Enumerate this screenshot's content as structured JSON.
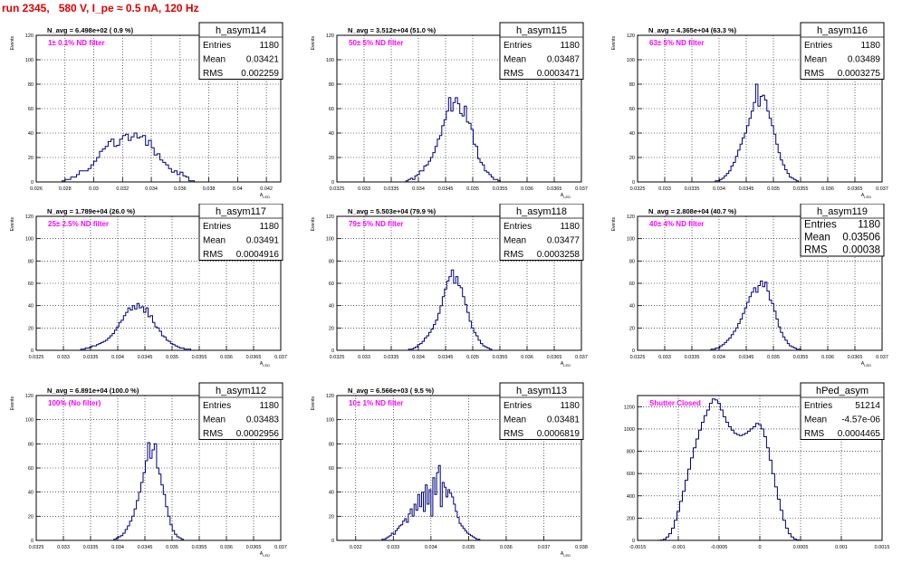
{
  "page": {
    "title": "run 2345,   580 V, I_pe ≈ 0.5 nA, 120 Hz"
  },
  "chart_data": [
    {
      "type": "histogram",
      "name": "h_asym114",
      "ylabel": "Events",
      "xlabel": "A_LED",
      "stat_labels": {
        "entries": "Entries",
        "mean": "Mean",
        "rms": "RMS"
      },
      "entries": "1180",
      "mean": "0.03421",
      "rms": "0.002259",
      "navg": "N_avg = 6.498e+02 ( 0.9 %)",
      "filter": "1± 0.1% ND filter",
      "xlim": [
        0.026,
        0.043
      ],
      "xticks": [
        "0.026",
        "0.028",
        "0.03",
        "0.032",
        "0.034",
        "0.036",
        "0.038",
        "0.04",
        "0.042"
      ],
      "ylim": [
        0,
        120
      ],
      "yticks": [
        "0",
        "20",
        "40",
        "60",
        "80",
        "100",
        "120"
      ],
      "bins": {
        "lo": 0.0278,
        "width": 0.0002,
        "values": [
          1,
          2,
          2,
          4,
          4,
          6,
          9,
          9,
          9,
          11,
          14,
          17,
          20,
          25,
          27,
          29,
          33,
          35,
          29,
          30,
          35,
          38,
          39,
          34,
          37,
          40,
          36,
          37,
          38,
          30,
          34,
          28,
          22,
          23,
          18,
          16,
          14,
          11,
          8,
          9,
          6,
          8,
          5,
          4,
          1,
          1
        ]
      },
      "grid": true
    },
    {
      "type": "histogram",
      "name": "h_asym115",
      "ylabel": "Events",
      "xlabel": "A_LED",
      "stat_labels": {
        "entries": "Entries",
        "mean": "Mean",
        "rms": "RMS"
      },
      "entries": "1180",
      "mean": "0.03487",
      "rms": "0.0003471",
      "navg": "N_avg = 3.512e+04 (51.0 %)",
      "filter": "50± 5% ND filter",
      "xlim": [
        0.0325,
        0.037
      ],
      "xticks": [
        "0.0325",
        "0.033",
        "0.0335",
        "0.034",
        "0.0345",
        "0.035",
        "0.0355",
        "0.036",
        "0.0365",
        "0.037"
      ],
      "ylim": [
        0,
        120
      ],
      "yticks": [
        "0",
        "20",
        "40",
        "60",
        "80",
        "100",
        "120"
      ],
      "bins": {
        "lo": 0.03377,
        "width": 4.13e-05,
        "values": [
          1,
          2,
          3,
          2,
          5,
          6,
          9,
          9,
          13,
          14,
          17,
          20,
          24,
          29,
          35,
          38,
          46,
          51,
          58,
          69,
          58,
          65,
          69,
          64,
          56,
          54,
          62,
          49,
          48,
          43,
          31,
          29,
          19,
          16,
          14,
          9,
          8,
          6,
          4,
          2,
          2,
          1
        ]
      },
      "grid": true
    },
    {
      "type": "histogram",
      "name": "h_asym116",
      "ylabel": "Events",
      "xlabel": "A_LED",
      "stat_labels": {
        "entries": "Entries",
        "mean": "Mean",
        "rms": "RMS"
      },
      "entries": "1180",
      "mean": "0.03489",
      "rms": "0.0003275",
      "navg": "N_avg = 4.365e+04 (63.3 %)",
      "filter": "63± 5% ND filter",
      "xlim": [
        0.0325,
        0.037
      ],
      "xticks": [
        "0.0325",
        "0.033",
        "0.0335",
        "0.034",
        "0.0345",
        "0.035",
        "0.0355",
        "0.036",
        "0.0365",
        "0.037"
      ],
      "ylim": [
        0,
        120
      ],
      "yticks": [
        "0",
        "20",
        "40",
        "60",
        "80",
        "100",
        "120"
      ],
      "bins": {
        "lo": 0.03393,
        "width": 4.13e-05,
        "values": [
          1,
          1,
          2,
          3,
          5,
          7,
          9,
          13,
          16,
          21,
          26,
          31,
          36,
          40,
          46,
          52,
          58,
          65,
          80,
          62,
          70,
          71,
          67,
          58,
          52,
          46,
          39,
          31,
          24,
          18,
          14,
          10,
          7,
          4,
          3,
          2,
          1
        ]
      },
      "grid": true
    },
    {
      "type": "histogram",
      "name": "h_asym117",
      "ylabel": "Events",
      "xlabel": "A_LED",
      "stat_labels": {
        "entries": "Entries",
        "mean": "Mean",
        "rms": "RMS"
      },
      "entries": "1180",
      "mean": "0.03491",
      "rms": "0.0004916",
      "navg": "N_avg = 1.789e+04 (26.0 %)",
      "filter": "25± 2.5% ND filter",
      "xlim": [
        0.0325,
        0.037
      ],
      "xticks": [
        "0.0325",
        "0.033",
        "0.0335",
        "0.034",
        "0.0345",
        "0.035",
        "0.0355",
        "0.036",
        "0.0365",
        "0.037"
      ],
      "ylim": [
        0,
        120
      ],
      "yticks": [
        "0",
        "20",
        "40",
        "60",
        "80",
        "100",
        "120"
      ],
      "bins": {
        "lo": 0.03332,
        "width": 4.13e-05,
        "values": [
          1,
          1,
          2,
          2,
          3,
          4,
          4,
          5,
          6,
          7,
          8,
          9,
          11,
          13,
          15,
          18,
          21,
          25,
          27,
          31,
          34,
          38,
          36,
          40,
          37,
          42,
          38,
          39,
          34,
          38,
          30,
          31,
          25,
          21,
          20,
          17,
          13,
          12,
          9,
          8,
          6,
          5,
          4,
          3,
          2,
          2,
          1,
          1,
          1
        ]
      },
      "grid": true
    },
    {
      "type": "histogram",
      "name": "h_asym118",
      "ylabel": "Events",
      "xlabel": "A_LED",
      "stat_labels": {
        "entries": "Entries",
        "mean": "Mean",
        "rms": "RMS"
      },
      "entries": "1180",
      "mean": "0.03477",
      "rms": "0.0003258",
      "navg": "N_avg = 5.503e+04 (79.9 %)",
      "filter": "79± 5% ND filter",
      "xlim": [
        0.0325,
        0.037
      ],
      "xticks": [
        "0.0325",
        "0.033",
        "0.0335",
        "0.034",
        "0.0345",
        "0.035",
        "0.0355",
        "0.036",
        "0.0365",
        "0.037"
      ],
      "ylim": [
        0,
        120
      ],
      "yticks": [
        "0",
        "20",
        "40",
        "60",
        "80",
        "100",
        "120"
      ],
      "bins": {
        "lo": 0.03382,
        "width": 4.13e-05,
        "values": [
          1,
          1,
          2,
          3,
          5,
          6,
          8,
          11,
          13,
          16,
          19,
          23,
          27,
          33,
          40,
          48,
          55,
          62,
          66,
          72,
          60,
          66,
          58,
          56,
          48,
          41,
          34,
          26,
          20,
          16,
          13,
          9,
          6,
          4,
          3,
          2,
          1
        ]
      },
      "grid": true
    },
    {
      "type": "histogram",
      "name": "h_asym119",
      "ylabel": "Events",
      "xlabel": "A_LED",
      "stat_labels": {
        "entries": "Entries",
        "mean": "Mean",
        "rms": "RMS"
      },
      "entries": "1180",
      "mean": "0.03506",
      "rms": "0.00038",
      "navg": "N_avg = 2.808e+04 (40.7 %)",
      "filter": "40± 4% ND filter",
      "xlim": [
        0.0325,
        0.037
      ],
      "xticks": [
        "0.0325",
        "0.033",
        "0.0335",
        "0.034",
        "0.0345",
        "0.035",
        "0.0355",
        "0.036",
        "0.0365",
        "0.037"
      ],
      "ylim": [
        0,
        120
      ],
      "yticks": [
        "0",
        "20",
        "40",
        "60",
        "80",
        "100",
        "120"
      ],
      "bins": {
        "lo": 0.03385,
        "width": 4.13e-05,
        "values": [
          1,
          1,
          2,
          2,
          4,
          5,
          7,
          9,
          11,
          14,
          17,
          20,
          24,
          28,
          33,
          38,
          43,
          48,
          52,
          56,
          52,
          58,
          62,
          57,
          61,
          53,
          45,
          42,
          35,
          28,
          21,
          16,
          12,
          9,
          6,
          4,
          3,
          2,
          1,
          1
        ]
      },
      "grid": true
    },
    {
      "type": "histogram",
      "name": "h_asym112",
      "ylabel": "Events",
      "xlabel": "A_LED",
      "stat_labels": {
        "entries": "Entries",
        "mean": "Mean",
        "rms": "RMS"
      },
      "entries": "1180",
      "mean": "0.03483",
      "rms": "0.0002956",
      "navg": "N_avg = 6.891e+04 (100.0 %)",
      "filter": "100% (No filter)",
      "xlim": [
        0.0325,
        0.037
      ],
      "xticks": [
        "0.0325",
        "0.033",
        "0.0335",
        "0.034",
        "0.0345",
        "0.035",
        "0.0355",
        "0.036",
        "0.0365",
        "0.037"
      ],
      "ylim": [
        0,
        120
      ],
      "yticks": [
        "0",
        "20",
        "40",
        "60",
        "80",
        "100",
        "120"
      ],
      "bins": {
        "lo": 0.03393,
        "width": 4.13e-05,
        "values": [
          1,
          2,
          3,
          4,
          6,
          9,
          12,
          16,
          20,
          26,
          33,
          40,
          48,
          56,
          66,
          81,
          68,
          75,
          80,
          60,
          55,
          46,
          38,
          28,
          20,
          13,
          8,
          5,
          3,
          2,
          1
        ]
      },
      "grid": true
    },
    {
      "type": "histogram",
      "name": "h_asym113",
      "ylabel": "Events",
      "xlabel": "A_LED",
      "stat_labels": {
        "entries": "Entries",
        "mean": "Mean",
        "rms": "RMS"
      },
      "entries": "1180",
      "mean": "0.03481",
      "rms": "0.0006819",
      "navg": "N_avg = 6.566e+03 ( 9.5 %)",
      "filter": "10± 1% ND filter",
      "xlim": [
        0.0315,
        0.038
      ],
      "xticks": [
        "0.032",
        "0.033",
        "0.034",
        "0.035",
        "0.036",
        "0.037",
        "0.038"
      ],
      "ylim": [
        0,
        120
      ],
      "yticks": [
        "0",
        "20",
        "40",
        "60",
        "80",
        "100",
        "120"
      ],
      "bins": {
        "lo": 0.0327,
        "width": 5e-05,
        "values": [
          1,
          1,
          2,
          3,
          4,
          6,
          5,
          8,
          10,
          12,
          13,
          16,
          18,
          15,
          22,
          26,
          20,
          30,
          25,
          38,
          28,
          40,
          24,
          46,
          30,
          42,
          20,
          52,
          38,
          56,
          62,
          28,
          48,
          44,
          36,
          42,
          39,
          36,
          30,
          24,
          19,
          14,
          12,
          10,
          8,
          6,
          5,
          4,
          3,
          2,
          1,
          1
        ]
      },
      "grid": true
    },
    {
      "type": "histogram",
      "name": "hPed_asym",
      "ylabel": "",
      "xlabel": "",
      "stat_labels": {
        "entries": "Entries",
        "mean": "Mean",
        "rms": "RMS"
      },
      "entries": "51214",
      "mean": "-4.57e-06",
      "rms": "0.0004465",
      "navg": "",
      "filter": "Shutter Closed",
      "xlim": [
        -0.0015,
        0.0015
      ],
      "xticks": [
        "-0.0015",
        "-0.001",
        "-0.0005",
        "0",
        "0.0005",
        "0.001",
        "0.0015"
      ],
      "ylim": [
        0,
        1300
      ],
      "yticks": [
        "0",
        "200",
        "400",
        "600",
        "800",
        "1000",
        "1200"
      ],
      "bins": {
        "lo": -0.00125,
        "width": 3.33e-05,
        "values": [
          1,
          3,
          10,
          30,
          60,
          110,
          180,
          260,
          350,
          440,
          540,
          640,
          740,
          830,
          910,
          990,
          1060,
          1120,
          1170,
          1230,
          1270,
          1260,
          1230,
          1170,
          1110,
          1060,
          1020,
          990,
          960,
          950,
          940,
          950,
          960,
          980,
          1000,
          1020,
          1050,
          1040,
          1000,
          930,
          830,
          720,
          600,
          480,
          370,
          270,
          180,
          110,
          60,
          30,
          12,
          4,
          1
        ]
      },
      "grid": true
    }
  ]
}
